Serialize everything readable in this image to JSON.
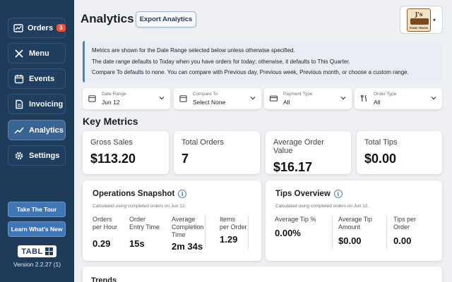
{
  "nav": {
    "orders": {
      "label": "Orders",
      "badge": "3"
    },
    "menu": {
      "label": "Menu"
    },
    "events": {
      "label": "Events"
    },
    "invoicing": {
      "label": "Invoicing"
    },
    "analytics": {
      "label": "Analytics"
    },
    "settings": {
      "label": "Settings"
    }
  },
  "sidebar_buttons": {
    "tour": "Take The Tour",
    "whats_new": "Learn What's New"
  },
  "brand": {
    "logo_text": "TABL",
    "version": "Version 2.2.27 (1)"
  },
  "header": {
    "title": "Analytics",
    "export_label": "Export Analytics"
  },
  "profile": {
    "logo_text": "J's",
    "logo_subtext": "FOOD TRUCK"
  },
  "info_banner": {
    "line1": "Metrics are shown for the Date Range selected below unless otherwise specified.",
    "line2": "The date range defaults to Today when you have orders for today; otherwise, it defaults to This Quarter.",
    "line3": "Compare To defaults to none. You can compare with Previous day, Previous week, Previous month, or choose a custom range."
  },
  "filters": {
    "date_range": {
      "label": "Date Range",
      "value": "Jun 12"
    },
    "compare_to": {
      "label": "Compare To",
      "value": "Select None"
    },
    "payment_type": {
      "label": "Payment Type",
      "value": "All"
    },
    "order_type": {
      "label": "Order Type",
      "value": "All"
    }
  },
  "key_metrics": {
    "title": "Key Metrics",
    "gross_sales": {
      "label": "Gross Sales",
      "value": "$113.20"
    },
    "total_orders": {
      "label": "Total Orders",
      "value": "7"
    },
    "avg_order_value": {
      "label": "Average Order Value",
      "value": "$16.17"
    },
    "total_tips": {
      "label": "Total Tips",
      "value": "$0.00"
    }
  },
  "operations": {
    "title": "Operations Snapshot",
    "subtitle": "Calculated using completed orders on Jun 12.",
    "orders_per_hour": {
      "label1": "Orders",
      "label2": "per Hour",
      "value": "0.29"
    },
    "order_entry_time": {
      "label1": "Order",
      "label2": "Entry Time",
      "value": "15s"
    },
    "avg_completion": {
      "label1": "Average",
      "label2": "Completion",
      "label3": "Time",
      "value": "2m 34s"
    },
    "items_per_order": {
      "label1": "Items",
      "label2": "per Order",
      "value": "1.29"
    }
  },
  "tips": {
    "title": "Tips Overview",
    "subtitle": "Calculated using completed orders on Jun 12.",
    "avg_tip_pct": {
      "label1": "Average Tip %",
      "value": "0.00%"
    },
    "avg_tip_amount": {
      "label1": "Average Tip",
      "label2": "Amount",
      "value": "$0.00"
    },
    "tips_per_order": {
      "label1": "Tips per",
      "label2": "Order",
      "value": "0.00"
    }
  },
  "trends": {
    "title": "Trends"
  },
  "icons": {
    "orders": "orders-chart-icon",
    "menu": "utensils-icon",
    "events": "calendar-icon",
    "invoicing": "invoice-icon",
    "analytics": "trend-line-icon",
    "settings": "gear-icon",
    "info": "info-icon"
  },
  "colors": {
    "sidebar": "#1f3b5a",
    "accent": "#3f76b5",
    "badge": "#e8533f",
    "active_nav": "#3a6494"
  }
}
